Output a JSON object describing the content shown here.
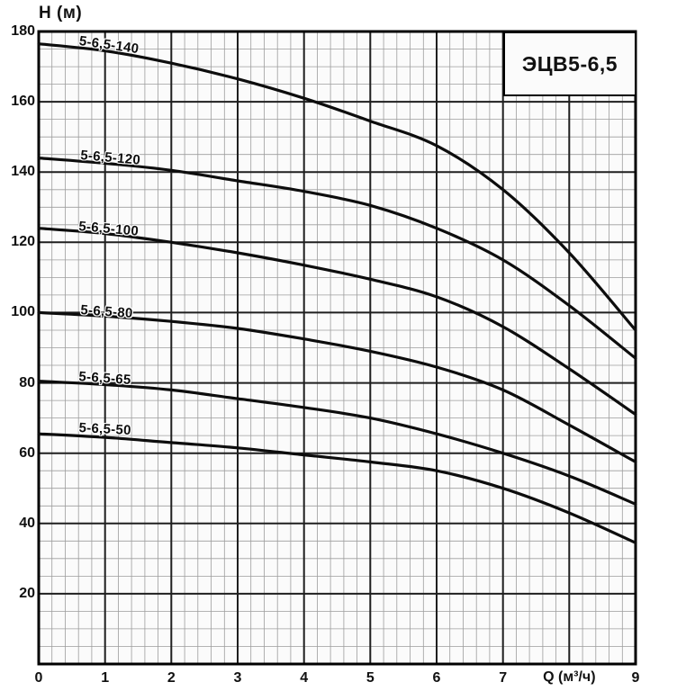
{
  "title_box": {
    "label": "ЭЦВ5-6,5"
  },
  "axes": {
    "y_label": "H (м)",
    "x_label": "Q (м³/ч)",
    "y_ticks": [
      180,
      160,
      140,
      120,
      100,
      80,
      60,
      40,
      20
    ],
    "x_ticks": [
      0,
      1,
      2,
      3,
      4,
      5,
      6,
      7,
      9
    ],
    "x_label_at": 8
  },
  "chart_data": {
    "type": "line",
    "title": "ЭЦВ5-6,5",
    "xlabel": "Q (м³/ч)",
    "ylabel": "H (м)",
    "xlim": [
      0,
      9
    ],
    "ylim": [
      0,
      180
    ],
    "grid": true,
    "x_major_step": 1,
    "x_minor_step": 0.2,
    "y_major_step": 20,
    "y_minor_step": 5,
    "line_color": "#0d0d0d",
    "grid_major_color": "#1f1f1f",
    "grid_minor_color": "#9d9d9d",
    "x": [
      0,
      1,
      2,
      3,
      4,
      5,
      6,
      7,
      8,
      9
    ],
    "series": [
      {
        "name": "5-6,5-140",
        "values": [
          176.5,
          174.5,
          171,
          166.5,
          161,
          154.5,
          147.5,
          135,
          117,
          95
        ],
        "label": {
          "q": 0.62,
          "h": 179.2,
          "rot": 8
        }
      },
      {
        "name": "5-6,5-120",
        "values": [
          144,
          142.5,
          140.5,
          137.5,
          134.5,
          130.5,
          124,
          115,
          102,
          87
        ],
        "label": {
          "q": 0.64,
          "h": 146.6,
          "rot": 5
        }
      },
      {
        "name": "5-6,5-100",
        "values": [
          124,
          122.5,
          120,
          117,
          113.5,
          109.5,
          104.5,
          96,
          84,
          71
        ],
        "label": {
          "q": 0.61,
          "h": 126.6,
          "rot": 5
        }
      },
      {
        "name": "5-6,5-80",
        "values": [
          100,
          99,
          97.5,
          95.5,
          92.5,
          89,
          84.5,
          78,
          68,
          57.5
        ],
        "label": {
          "q": 0.64,
          "h": 102.6,
          "rot": 4
        }
      },
      {
        "name": "5-6,5-65",
        "values": [
          80.5,
          79.5,
          78,
          75.5,
          73,
          70,
          65.5,
          60,
          53.5,
          45.5
        ],
        "label": {
          "q": 0.61,
          "h": 83.8,
          "rot": 4
        }
      },
      {
        "name": "5-6,5-50",
        "values": [
          65.5,
          64.5,
          63,
          61.5,
          59.5,
          57.5,
          55,
          50,
          43,
          34.5
        ],
        "label": {
          "q": 0.61,
          "h": 69.2,
          "rot": 3
        }
      }
    ]
  }
}
